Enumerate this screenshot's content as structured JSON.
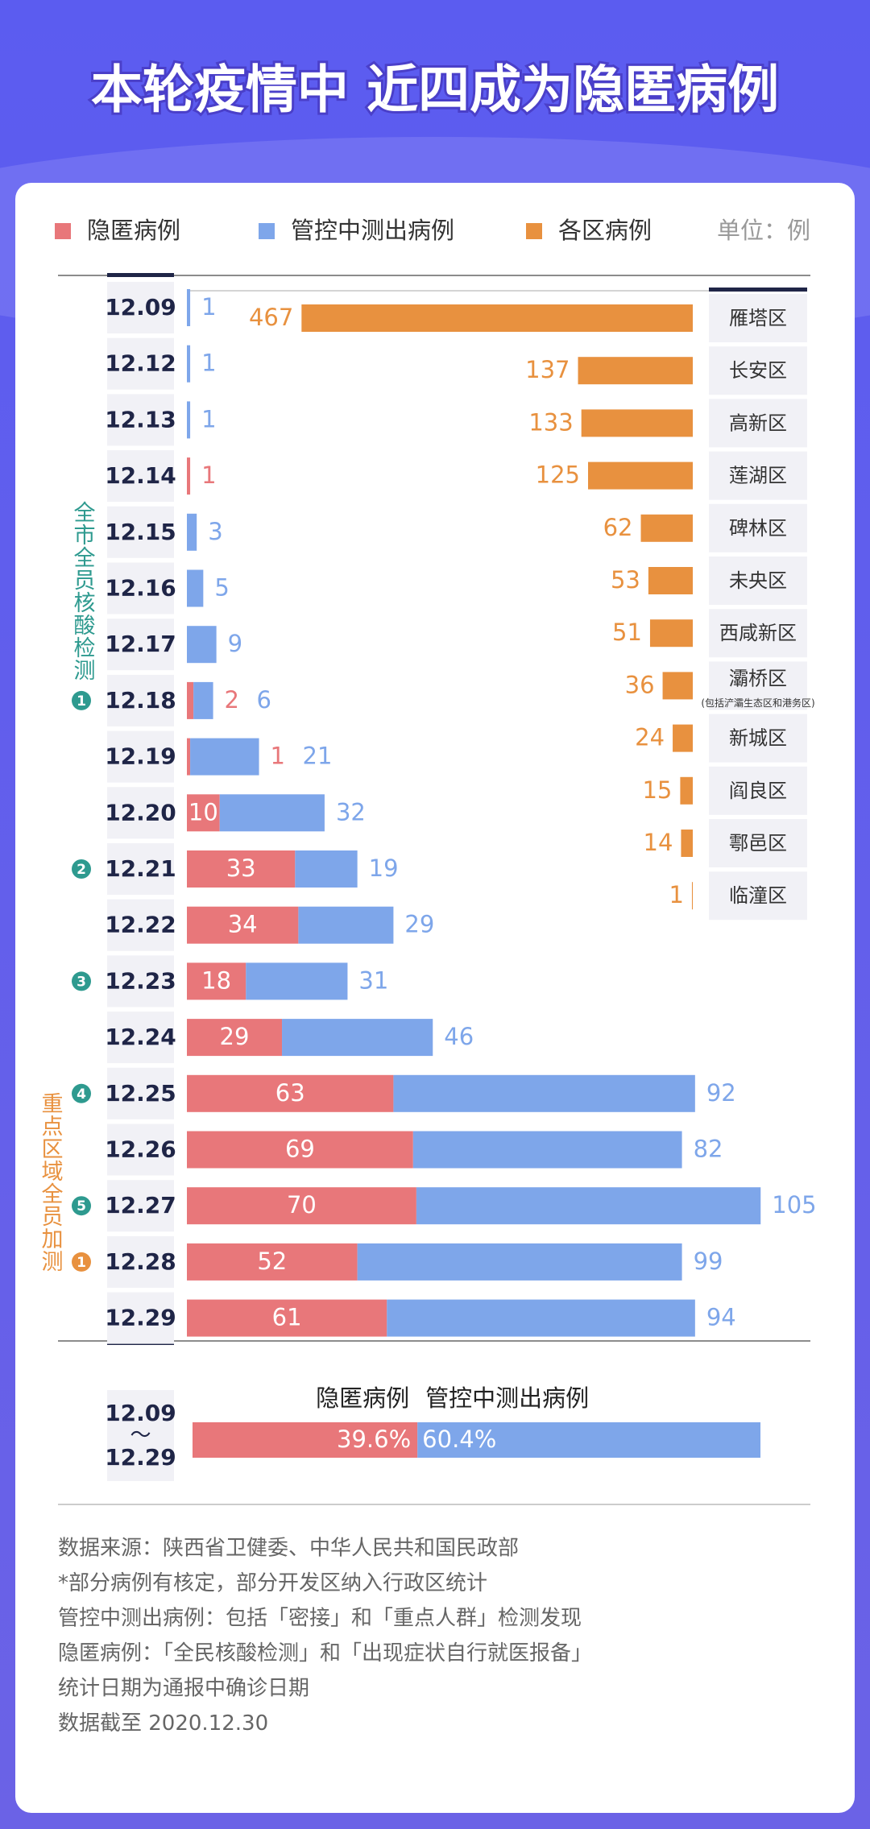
{
  "title": "本轮疫情中 近四成为隐匿病例",
  "unit": "单位：例",
  "chart_data": [
    {
      "type": "bar",
      "orientation": "horizontal",
      "stacked": true,
      "categories": [
        "12.09",
        "12.12",
        "12.13",
        "12.14",
        "12.15",
        "12.16",
        "12.17",
        "12.18",
        "12.19",
        "12.20",
        "12.21",
        "12.22",
        "12.23",
        "12.24",
        "12.25",
        "12.26",
        "12.27",
        "12.28",
        "12.29"
      ],
      "series": [
        {
          "name": "隐匿病例",
          "color": "#e8777a",
          "values": [
            null,
            null,
            null,
            1,
            null,
            null,
            null,
            2,
            1,
            10,
            33,
            34,
            18,
            29,
            63,
            69,
            70,
            52,
            61
          ]
        },
        {
          "name": "管控中测出病例",
          "color": "#7ea6ea",
          "values": [
            1,
            1,
            1,
            null,
            3,
            5,
            9,
            6,
            21,
            32,
            19,
            29,
            31,
            46,
            92,
            82,
            105,
            99,
            94
          ]
        }
      ],
      "phase_marks": [
        null,
        null,
        null,
        null,
        null,
        null,
        null,
        {
          "label": "1",
          "color": "#2e9a8f"
        },
        null,
        null,
        {
          "label": "2",
          "color": "#2e9a8f"
        },
        null,
        {
          "label": "3",
          "color": "#2e9a8f"
        },
        null,
        {
          "label": "4",
          "color": "#2e9a8f"
        },
        null,
        {
          "label": "5",
          "color": "#2e9a8f"
        },
        {
          "label": "1",
          "color": "#e8913f"
        },
        null
      ],
      "annotations": [
        {
          "text": "全市全员核酸检测",
          "color": "#2e9a8f"
        },
        {
          "text": "重点区域全员加测",
          "color": "#e8913f"
        }
      ]
    },
    {
      "type": "bar",
      "orientation": "horizontal",
      "name": "各区病例",
      "color": "#e8913f",
      "categories": [
        "雁塔区",
        "长安区",
        "高新区",
        "莲湖区",
        "碑林区",
        "未央区",
        "西咸新区",
        "灞桥区",
        "新城区",
        "阎良区",
        "鄠邑区",
        "临潼区"
      ],
      "values": [
        467,
        137,
        133,
        125,
        62,
        53,
        51,
        36,
        24,
        15,
        14,
        1
      ],
      "category_notes": [
        null,
        null,
        null,
        null,
        null,
        null,
        null,
        "(包括浐灞生态区和港务区)",
        null,
        null,
        null,
        null
      ]
    },
    {
      "type": "bar",
      "orientation": "horizontal",
      "stacked": true,
      "period": {
        "start": "12.09",
        "separator": "～",
        "end": "12.29"
      },
      "series": [
        {
          "name": "隐匿病例",
          "color": "#e8777a",
          "values": [
            39.6
          ],
          "value_labels": [
            "39.6%"
          ]
        },
        {
          "name": "管控中测出病例",
          "color": "#7ea6ea",
          "values": [
            60.4
          ],
          "value_labels": [
            "60.4%"
          ]
        }
      ]
    }
  ],
  "notes": [
    "数据来源：陕西省卫健委、中华人民共和国民政部",
    "*部分病例有核定，部分开发区纳入行政区统计",
    "管控中测出病例：包括「密接」和「重点人群」检测发现",
    "隐匿病例：「全民核酸检测」和「出现症状自行就医报备」",
    "统计日期为通报中确诊日期",
    "数据截至 2020.12.30"
  ]
}
